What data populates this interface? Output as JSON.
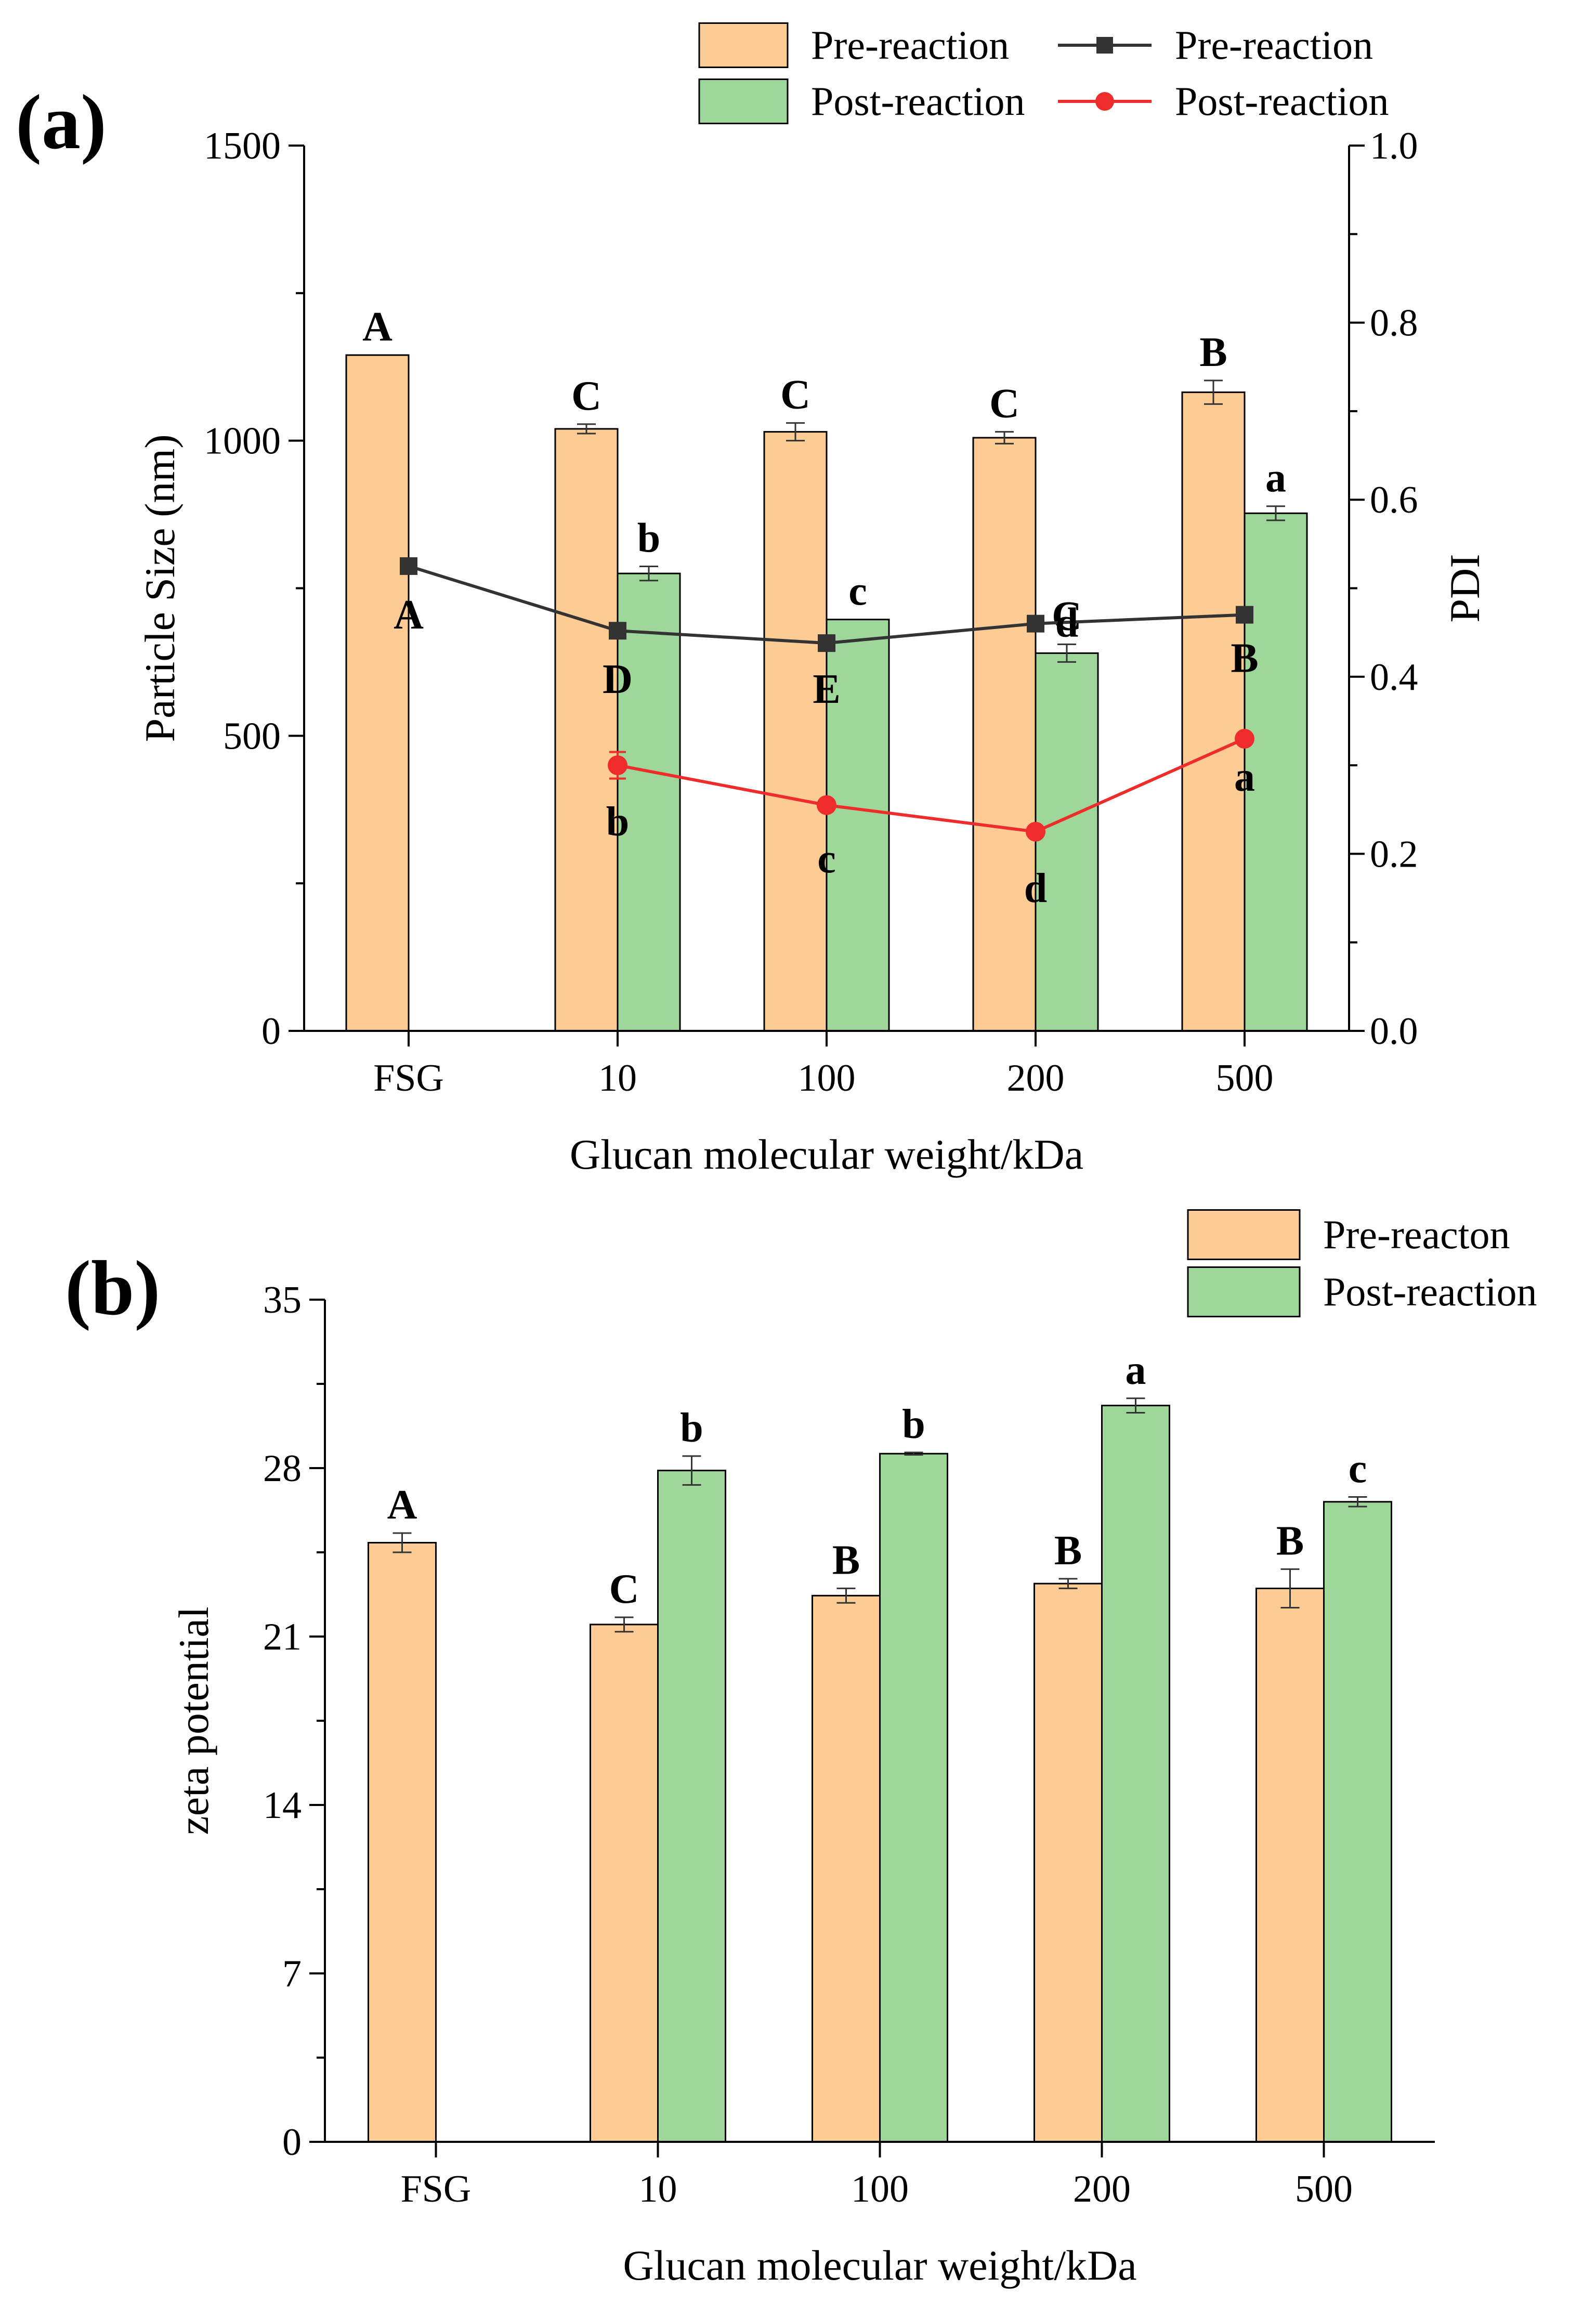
{
  "chart_data": [
    {
      "panel_label": "(a)",
      "type": "bar",
      "categories": [
        "FSG",
        "10",
        "100",
        "200",
        "500"
      ],
      "xlabel": "Glucan molecular weight/kDa",
      "ylabel": "Particle Size (nm)",
      "ylim": [
        0,
        1500
      ],
      "yticks": [
        "0",
        "500",
        "1000",
        "1500"
      ],
      "y2label": "PDI",
      "y2lim": [
        0,
        1.0
      ],
      "y2ticks": [
        "0.0",
        "0.2",
        "0.4",
        "0.6",
        "0.8",
        "1.0"
      ],
      "grid": false,
      "legend_position": "top",
      "series": [
        {
          "name": "Pre-reaction",
          "kind": "bar",
          "axis": "left",
          "color": "#fdcb94",
          "values": [
            1145,
            1020,
            1015,
            1005,
            1082
          ],
          "errors": [
            0,
            8,
            15,
            10,
            20
          ],
          "letters": [
            "A",
            "C",
            "C",
            "C",
            "B"
          ]
        },
        {
          "name": "Post-reaction",
          "kind": "bar",
          "axis": "left",
          "color": "#9fd79b",
          "values": [
            null,
            775,
            697,
            640,
            877
          ],
          "errors": [
            null,
            12,
            0,
            15,
            12
          ],
          "letters": [
            "",
            "b",
            "c",
            "C",
            "a"
          ]
        },
        {
          "name": "Pre-reaction",
          "kind": "line",
          "axis": "right",
          "color": "#333333",
          "marker": "square",
          "values": [
            0.525,
            0.452,
            0.438,
            0.46,
            0.47
          ],
          "errors": [
            0,
            0,
            0,
            0,
            0
          ],
          "letters": [
            "A",
            "D",
            "E",
            "d",
            "B"
          ]
        },
        {
          "name": "Post-reaction",
          "kind": "line",
          "axis": "right",
          "color": "#ee2c2c",
          "marker": "circle",
          "values": [
            null,
            0.3,
            0.255,
            0.225,
            0.33
          ],
          "errors": [
            null,
            0.015,
            0,
            0,
            0.005
          ],
          "letters": [
            "",
            "b",
            "c",
            "d",
            "a"
          ]
        }
      ]
    },
    {
      "panel_label": "(b)",
      "type": "bar",
      "categories": [
        "FSG",
        "10",
        "100",
        "200",
        "500"
      ],
      "xlabel": "Glucan molecular weight/kDa",
      "ylabel": "zeta potential",
      "ylim": [
        0,
        35
      ],
      "yticks": [
        "0",
        "7",
        "14",
        "21",
        "28",
        "35"
      ],
      "grid": false,
      "legend_position": "top-right",
      "series": [
        {
          "name": "Pre-reacton",
          "color": "#fdcb94",
          "values": [
            24.9,
            21.5,
            22.7,
            23.2,
            23.0
          ],
          "errors": [
            0.4,
            0.3,
            0.3,
            0.2,
            0.8
          ],
          "letters": [
            "A",
            "C",
            "B",
            "B",
            "B"
          ]
        },
        {
          "name": "Post-reaction",
          "color": "#9fd79b",
          "values": [
            null,
            27.9,
            28.6,
            30.6,
            26.6
          ],
          "errors": [
            null,
            0.6,
            0.05,
            0.3,
            0.2
          ],
          "letters": [
            "",
            "b",
            "b",
            "a",
            "c"
          ]
        }
      ]
    }
  ]
}
